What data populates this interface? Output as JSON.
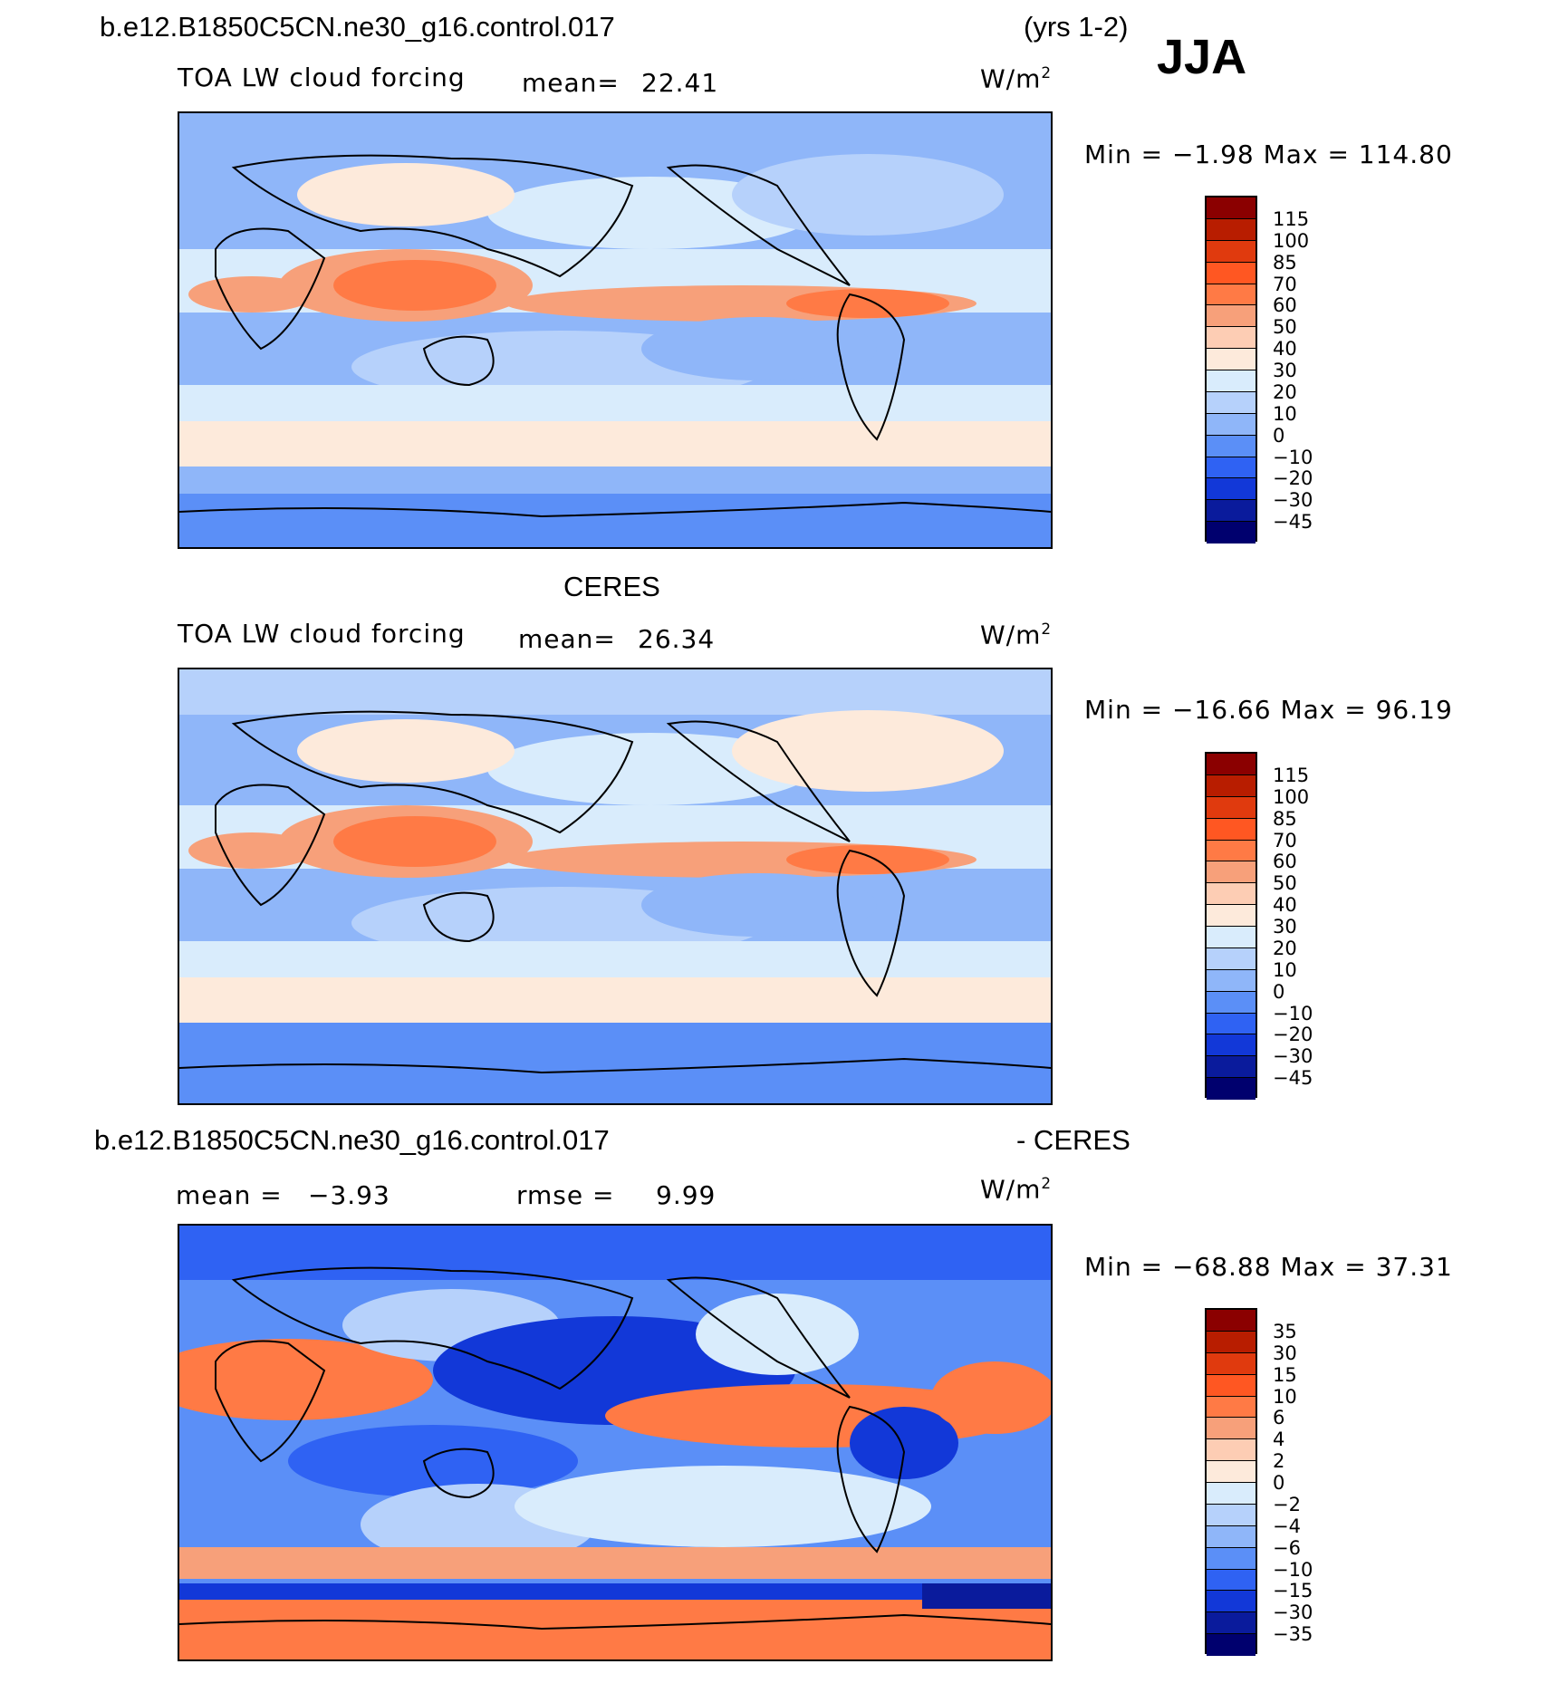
{
  "header": {
    "case_title": "b.e12.B1850C5CN.ne30_g16.control.017",
    "years": "(yrs 1-2)",
    "season": "JJA"
  },
  "panels": [
    {
      "id": "model",
      "subtitle": "",
      "variable": "TOA LW cloud forcing",
      "mean_label": "mean=",
      "mean_value": "22.41",
      "units": "W/m",
      "units_sup": "2",
      "minmax": "Min =   −1.98 Max =  114.80",
      "colorbar_labels": [
        "115",
        "100",
        "85",
        "70",
        "60",
        "50",
        "40",
        "30",
        "20",
        "10",
        "0",
        "−10",
        "−20",
        "−30",
        "−45"
      ]
    },
    {
      "id": "obs",
      "subtitle": "CERES",
      "variable": "TOA LW cloud forcing",
      "mean_label": "mean=",
      "mean_value": "26.34",
      "units": "W/m",
      "units_sup": "2",
      "minmax": "Min = −16.66 Max =   96.19",
      "colorbar_labels": [
        "115",
        "100",
        "85",
        "70",
        "60",
        "50",
        "40",
        "30",
        "20",
        "10",
        "0",
        "−10",
        "−20",
        "−30",
        "−45"
      ]
    },
    {
      "id": "diff",
      "case_title": "b.e12.B1850C5CN.ne30_g16.control.017",
      "minus_label": "- CERES",
      "mean_label": "mean =",
      "mean_value": "−3.93",
      "rmse_label": "rmse =",
      "rmse_value": "9.99",
      "units": "W/m",
      "units_sup": "2",
      "minmax": "Min = −68.88 Max =   37.31",
      "colorbar_labels": [
        "35",
        "30",
        "15",
        "10",
        "6",
        "4",
        "2",
        "0",
        "−2",
        "−4",
        "−6",
        "−10",
        "−15",
        "−30",
        "−35"
      ]
    }
  ],
  "colors": {
    "main_scale": [
      "#8b0000",
      "#b81d00",
      "#e03a0e",
      "#ff5722",
      "#ff7a45",
      "#f7a07a",
      "#fdcdb4",
      "#fdeadb",
      "#d9ecfc",
      "#b6d1fb",
      "#8fb6f9",
      "#5b8ff7",
      "#2f62f3",
      "#1238d8",
      "#0a1b9c",
      "#00006e"
    ],
    "diff_scale": [
      "#8b0000",
      "#b81d00",
      "#e03a0e",
      "#ff5722",
      "#ff7a45",
      "#f7a07a",
      "#fdcdb4",
      "#fdeadb",
      "#d9ecfc",
      "#b6d1fb",
      "#8fb6f9",
      "#5b8ff7",
      "#2f62f3",
      "#1238d8",
      "#0a1b9c",
      "#00006e"
    ]
  }
}
